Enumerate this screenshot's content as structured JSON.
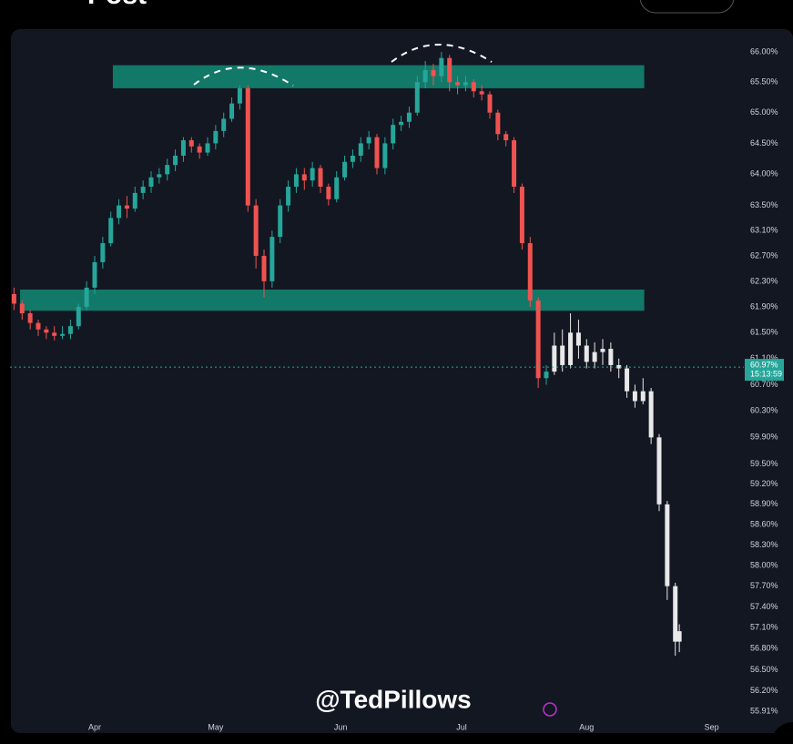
{
  "header": {
    "title": "Post"
  },
  "chart_data": {
    "type": "candlestick",
    "watermark": "@TedPillows",
    "log_scale": true,
    "grid": false,
    "up_color": "#26a69a",
    "down_color": "#ef5350",
    "xlim": [
      10,
      192
    ],
    "xticks": [
      {
        "value": 31,
        "label": "Apr"
      },
      {
        "value": 61,
        "label": "May"
      },
      {
        "value": 92,
        "label": "Jun"
      },
      {
        "value": 122,
        "label": "Jul"
      },
      {
        "value": 153,
        "label": "Aug"
      },
      {
        "value": 184,
        "label": "Sep"
      }
    ],
    "ylim": [
      55.67,
      66.38
    ],
    "yticks": [
      {
        "value": 66,
        "label": "66.00%"
      },
      {
        "value": 65.5,
        "label": "65.50%"
      },
      {
        "value": 65,
        "label": "65.00%"
      },
      {
        "value": 64.5,
        "label": "64.50%"
      },
      {
        "value": 64,
        "label": "64.00%"
      },
      {
        "value": 63.5,
        "label": "63.50%"
      },
      {
        "value": 63.1,
        "label": "63.10%"
      },
      {
        "value": 62.7,
        "label": "62.70%"
      },
      {
        "value": 62.3,
        "label": "62.30%"
      },
      {
        "value": 61.9,
        "label": "61.90%"
      },
      {
        "value": 61.5,
        "label": "61.50%"
      },
      {
        "value": 61.1,
        "label": "61.10%"
      },
      {
        "value": 60.7,
        "label": "60.70%"
      },
      {
        "value": 60.3,
        "label": "60.30%"
      },
      {
        "value": 59.9,
        "label": "59.90%"
      },
      {
        "value": 59.5,
        "label": "59.50%"
      },
      {
        "value": 59.2,
        "label": "59.20%"
      },
      {
        "value": 58.9,
        "label": "58.90%"
      },
      {
        "value": 58.6,
        "label": "58.60%"
      },
      {
        "value": 58.3,
        "label": "58.30%"
      },
      {
        "value": 58,
        "label": "58.00%"
      },
      {
        "value": 57.7,
        "label": "57.70%"
      },
      {
        "value": 57.4,
        "label": "57.40%"
      },
      {
        "value": 57.1,
        "label": "57.10%"
      },
      {
        "value": 56.8,
        "label": "56.80%"
      },
      {
        "value": 56.5,
        "label": "56.50%"
      },
      {
        "value": 56.2,
        "label": "56.20%"
      },
      {
        "value": 55.91,
        "label": "55.91%"
      }
    ],
    "last_price": {
      "value": 60.97,
      "value_label": "60.97%",
      "countdown": "15:13:59",
      "color": "#26a69a"
    },
    "zones": [
      {
        "x": [
          35.5,
          167.3
        ],
        "y": [
          65.4,
          65.78
        ],
        "color": "#138a74"
      },
      {
        "x": [
          12.5,
          167.3
        ],
        "y": [
          61.84,
          62.17
        ],
        "color": "#138a74"
      }
    ],
    "series": [
      {
        "x": [
          11,
          13,
          15,
          17,
          19,
          21,
          23,
          25,
          27,
          29,
          31,
          33,
          35,
          37,
          39,
          41,
          43,
          45,
          47,
          49,
          51,
          53,
          55,
          57,
          59,
          61,
          63,
          65,
          67,
          69,
          71,
          73,
          75,
          77,
          79,
          81,
          83,
          85,
          87,
          89,
          91,
          93,
          95,
          97,
          99,
          101,
          103,
          105,
          107,
          109,
          111,
          113,
          115,
          117,
          119,
          121,
          123,
          125,
          127,
          129,
          131,
          133,
          135,
          137,
          139,
          141,
          143
        ],
        "ohlc": [
          [
            62.1,
            62.2,
            61.85,
            61.95
          ],
          [
            61.95,
            62.0,
            61.7,
            61.8
          ],
          [
            61.8,
            61.85,
            61.55,
            61.65
          ],
          [
            61.65,
            61.7,
            61.45,
            61.55
          ],
          [
            61.55,
            61.6,
            61.4,
            61.5
          ],
          [
            61.5,
            61.6,
            61.38,
            61.45
          ],
          [
            61.45,
            61.6,
            61.4,
            61.48
          ],
          [
            61.48,
            61.7,
            61.4,
            61.6
          ],
          [
            61.6,
            61.95,
            61.55,
            61.9
          ],
          [
            61.9,
            62.3,
            61.85,
            62.2
          ],
          [
            62.2,
            62.7,
            62.1,
            62.6
          ],
          [
            62.6,
            63.0,
            62.5,
            62.9
          ],
          [
            62.9,
            63.4,
            62.85,
            63.3
          ],
          [
            63.3,
            63.6,
            63.2,
            63.5
          ],
          [
            63.5,
            63.65,
            63.3,
            63.45
          ],
          [
            63.45,
            63.8,
            63.4,
            63.7
          ],
          [
            63.7,
            63.9,
            63.6,
            63.8
          ],
          [
            63.8,
            64.05,
            63.7,
            63.95
          ],
          [
            63.95,
            64.1,
            63.85,
            64.0
          ],
          [
            64.0,
            64.25,
            63.9,
            64.15
          ],
          [
            64.15,
            64.4,
            64.05,
            64.3
          ],
          [
            64.3,
            64.6,
            64.2,
            64.55
          ],
          [
            64.55,
            64.6,
            64.35,
            64.45
          ],
          [
            64.45,
            64.5,
            64.25,
            64.35
          ],
          [
            64.35,
            64.6,
            64.3,
            64.5
          ],
          [
            64.5,
            64.8,
            64.4,
            64.7
          ],
          [
            64.7,
            65.0,
            64.6,
            64.9
          ],
          [
            64.9,
            65.25,
            64.85,
            65.15
          ],
          [
            65.15,
            65.45,
            65.05,
            65.4
          ],
          [
            65.4,
            65.45,
            63.4,
            63.5
          ],
          [
            63.5,
            63.6,
            62.5,
            62.7
          ],
          [
            62.7,
            62.8,
            62.05,
            62.3
          ],
          [
            62.3,
            63.1,
            62.2,
            63.0
          ],
          [
            63.0,
            63.6,
            62.9,
            63.5
          ],
          [
            63.5,
            63.9,
            63.4,
            63.8
          ],
          [
            63.8,
            64.1,
            63.7,
            64.0
          ],
          [
            64.0,
            64.1,
            63.75,
            63.9
          ],
          [
            63.9,
            64.2,
            63.8,
            64.1
          ],
          [
            64.1,
            64.15,
            63.7,
            63.8
          ],
          [
            63.8,
            63.85,
            63.5,
            63.6
          ],
          [
            63.6,
            64.05,
            63.55,
            63.95
          ],
          [
            63.95,
            64.3,
            63.9,
            64.2
          ],
          [
            64.2,
            64.4,
            64.1,
            64.3
          ],
          [
            64.3,
            64.6,
            64.2,
            64.5
          ],
          [
            64.5,
            64.7,
            64.4,
            64.6
          ],
          [
            64.6,
            64.65,
            64.0,
            64.1
          ],
          [
            64.1,
            64.6,
            64.0,
            64.5
          ],
          [
            64.5,
            64.9,
            64.4,
            64.8
          ],
          [
            64.8,
            64.95,
            64.7,
            64.85
          ],
          [
            64.85,
            65.1,
            64.75,
            65.0
          ],
          [
            65.0,
            65.6,
            64.95,
            65.5
          ],
          [
            65.5,
            65.85,
            65.4,
            65.7
          ],
          [
            65.7,
            65.8,
            65.45,
            65.6
          ],
          [
            65.6,
            66.0,
            65.5,
            65.9
          ],
          [
            65.9,
            65.95,
            65.35,
            65.5
          ],
          [
            65.5,
            65.6,
            65.3,
            65.45
          ],
          [
            65.45,
            65.6,
            65.35,
            65.5
          ],
          [
            65.5,
            65.55,
            65.25,
            65.35
          ],
          [
            65.35,
            65.45,
            65.2,
            65.3
          ],
          [
            65.3,
            65.35,
            64.9,
            65.0
          ],
          [
            65.0,
            65.05,
            64.55,
            64.65
          ],
          [
            64.65,
            64.7,
            64.45,
            64.55
          ],
          [
            64.55,
            64.6,
            63.7,
            63.8
          ],
          [
            63.8,
            63.85,
            62.8,
            62.9
          ],
          [
            62.9,
            63.0,
            61.9,
            62.0
          ],
          [
            62.0,
            62.05,
            60.65,
            60.8
          ],
          [
            60.8,
            61.0,
            60.7,
            60.9
          ]
        ]
      },
      {
        "color": "#e8e8e8",
        "x": [
          145,
          147,
          149,
          151,
          153,
          155,
          157,
          159,
          161,
          163,
          165,
          167,
          169,
          171,
          173,
          175,
          176
        ],
        "ohlc": [
          [
            60.9,
            61.5,
            60.85,
            61.3
          ],
          [
            61.3,
            61.55,
            60.9,
            61.0
          ],
          [
            61.0,
            61.8,
            60.95,
            61.5
          ],
          [
            61.5,
            61.7,
            61.1,
            61.3
          ],
          [
            61.3,
            61.4,
            60.95,
            61.05
          ],
          [
            61.05,
            61.35,
            60.95,
            61.2
          ],
          [
            61.2,
            61.4,
            61.0,
            61.25
          ],
          [
            61.25,
            61.35,
            60.9,
            61.0
          ],
          [
            61.0,
            61.1,
            60.8,
            60.95
          ],
          [
            60.95,
            61.0,
            60.5,
            60.6
          ],
          [
            60.6,
            60.7,
            60.35,
            60.45
          ],
          [
            60.45,
            60.8,
            60.4,
            60.6
          ],
          [
            60.6,
            60.65,
            59.8,
            59.9
          ],
          [
            59.9,
            59.95,
            58.8,
            58.9
          ],
          [
            58.9,
            58.95,
            57.5,
            57.7
          ],
          [
            57.7,
            57.75,
            56.7,
            56.9
          ],
          [
            56.9,
            57.15,
            56.75,
            57.05
          ]
        ]
      }
    ]
  }
}
